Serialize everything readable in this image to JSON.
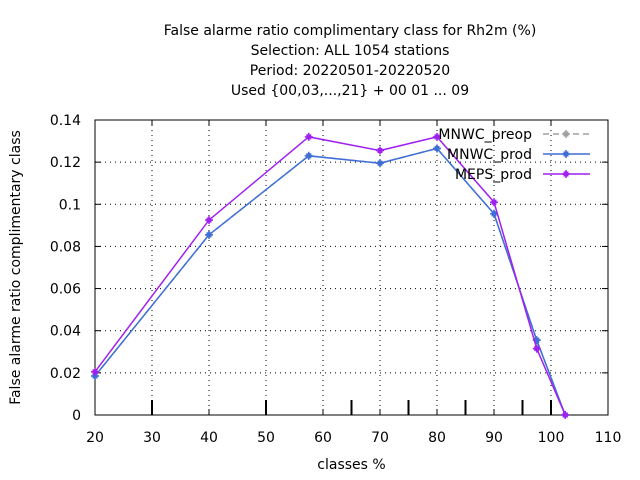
{
  "chart_data": {
    "type": "line",
    "title_lines": [
      "False alarme ratio complimentary class  for Rh2m (%)",
      "Selection: ALL   1054 stations",
      "Period: 20220501-20220520",
      "Used {00,03,...,21} + 00 01 ... 09"
    ],
    "xlabel": "classes %",
    "ylabel": "False alarme ratio complimentary class",
    "xlim": [
      20,
      110
    ],
    "ylim": [
      0,
      0.14
    ],
    "x_ticks": [
      "20",
      "30",
      "40",
      "50",
      "60",
      "70",
      "80",
      "90",
      "100",
      "110"
    ],
    "y_ticks": [
      "0",
      "0.02",
      "0.04",
      "0.06",
      "0.08",
      "0.1",
      "0.12",
      "0.14"
    ],
    "class_markers": [
      30,
      50,
      65,
      75,
      85,
      95,
      100
    ],
    "grid": true,
    "legend_position": "top-right",
    "series": [
      {
        "name": "MNWC_preop",
        "color": "#a0a0a0",
        "dashed": true,
        "x": [
          20,
          40,
          57.5,
          70,
          80,
          90,
          97.5,
          102.5
        ],
        "y": [
          0.0185,
          0.0855,
          0.123,
          0.1195,
          0.1265,
          0.0955,
          0.0355,
          0.0
        ]
      },
      {
        "name": "MNWC_prod",
        "color": "#3f6fd6",
        "dashed": false,
        "x": [
          20,
          40,
          57.5,
          70,
          80,
          90,
          97.5,
          102.5
        ],
        "y": [
          0.0185,
          0.0855,
          0.123,
          0.1195,
          0.1265,
          0.0955,
          0.0355,
          0.0
        ]
      },
      {
        "name": "MEPS_prod",
        "color": "#a020f0",
        "dashed": false,
        "x": [
          20,
          40,
          57.5,
          70,
          80,
          90,
          97.5,
          102.5
        ],
        "y": [
          0.0205,
          0.0925,
          0.132,
          0.1255,
          0.132,
          0.101,
          0.0315,
          0.0
        ]
      }
    ]
  }
}
